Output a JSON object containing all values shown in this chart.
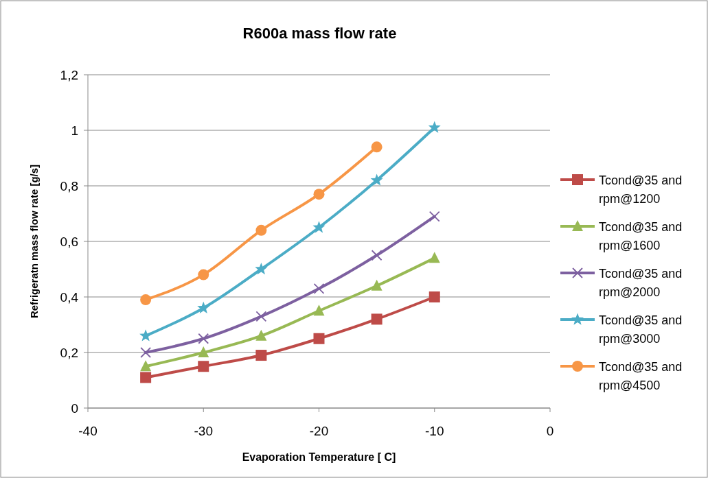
{
  "chart_data": {
    "type": "line",
    "title": "R600a mass flow rate",
    "xlabel": "Evaporation Temperature [ C]",
    "ylabel": "Refrigeratn mass flow rate [g/s]",
    "x": [
      -35,
      -30,
      -25,
      -20,
      -15,
      -10
    ],
    "series": [
      {
        "name": "Tcond@35 and rpm@1200",
        "color": "#be4b48",
        "marker": "square",
        "values": [
          0.11,
          0.15,
          0.19,
          0.25,
          0.32,
          0.4
        ]
      },
      {
        "name": "Tcond@35 and rpm@1600",
        "color": "#98b954",
        "marker": "triangle",
        "values": [
          0.15,
          0.2,
          0.26,
          0.35,
          0.44,
          0.54
        ]
      },
      {
        "name": "Tcond@35 and rpm@2000",
        "color": "#7d60a0",
        "marker": "cross",
        "values": [
          0.2,
          0.25,
          0.33,
          0.43,
          0.55,
          0.69
        ]
      },
      {
        "name": "Tcond@35 and rpm@3000",
        "color": "#4bacc6",
        "marker": "star",
        "values": [
          0.26,
          0.36,
          0.5,
          0.65,
          0.82,
          1.01
        ]
      },
      {
        "name": "Tcond@35 and rpm@4500",
        "color": "#f79646",
        "marker": "circle",
        "values": [
          0.39,
          0.48,
          0.64,
          0.77,
          0.94,
          null
        ]
      }
    ],
    "xlim": [
      -40,
      0
    ],
    "xticks": [
      -40,
      -30,
      -20,
      -10,
      0
    ],
    "ylim": [
      0,
      1.2
    ],
    "yticks": [
      0,
      {
        "value": 0.2,
        "label": "0,2"
      },
      {
        "value": 0.4,
        "label": "0,4"
      },
      {
        "value": 0.6,
        "label": "0,6"
      },
      {
        "value": 0.8,
        "label": "0,8"
      },
      1,
      {
        "value": 1.2,
        "label": "1,2"
      }
    ],
    "grid": "y",
    "legend": "right",
    "line_style": "solid"
  }
}
